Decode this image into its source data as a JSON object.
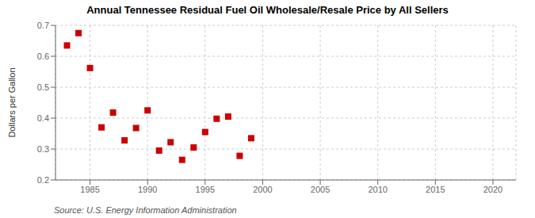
{
  "chart_data": {
    "type": "scatter",
    "title": "Annual Tennessee Residual Fuel Oil Wholesale/Resale Price by All Sellers",
    "ylabel": "Dollars per Gallon",
    "annotations": [
      "Source: U.S. Energy Information Administration"
    ],
    "x": [
      1983,
      1984,
      1985,
      1986,
      1987,
      1988,
      1989,
      1990,
      1991,
      1992,
      1993,
      1994,
      1995,
      1996,
      1997,
      1998,
      1999
    ],
    "values": [
      0.635,
      0.675,
      0.562,
      0.37,
      0.418,
      0.328,
      0.368,
      0.425,
      0.295,
      0.322,
      0.265,
      0.305,
      0.355,
      0.398,
      0.405,
      0.278,
      0.335
    ],
    "color": "#cc0000",
    "marker": "square",
    "xlim": [
      1982,
      2022
    ],
    "ylim": [
      0.2,
      0.7
    ],
    "xticks": [
      1985,
      1990,
      1995,
      2000,
      2005,
      2010,
      2015,
      2020
    ],
    "yticks": [
      0.2,
      0.3,
      0.4,
      0.5,
      0.6,
      0.7
    ],
    "grid": true
  }
}
